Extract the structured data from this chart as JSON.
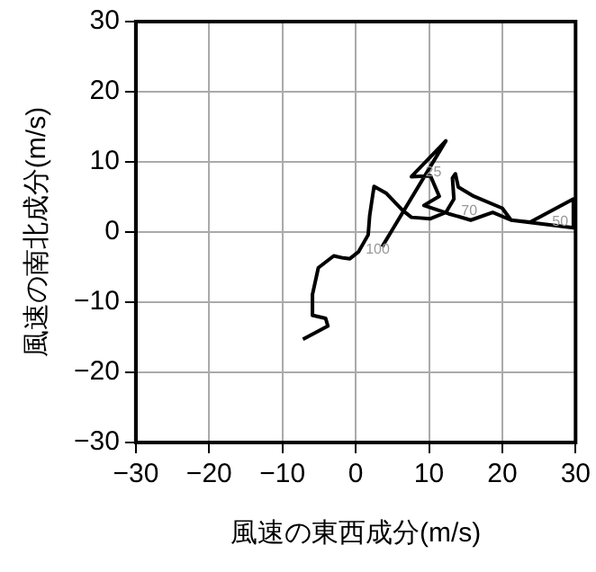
{
  "chart_data": {
    "type": "line",
    "xlabel": "風速の東西成分(m/s)",
    "ylabel": "風速の南北成分(m/s)",
    "xlim": [
      -30,
      30
    ],
    "ylim": [
      -30,
      30
    ],
    "xticks": [
      {
        "value": -30,
        "label": "−30"
      },
      {
        "value": -20,
        "label": "−20"
      },
      {
        "value": -10,
        "label": "−10"
      },
      0,
      10,
      20,
      30
    ],
    "yticks": [
      {
        "value": -30,
        "label": "−30"
      },
      {
        "value": -20,
        "label": "−20"
      },
      {
        "value": -10,
        "label": "−10"
      },
      0,
      10,
      20,
      30
    ],
    "grid": true,
    "legend": false,
    "marker": "none",
    "line_style": "solid",
    "annotations": [
      {
        "text": "100",
        "x": 3,
        "y": -2.5
      },
      {
        "text": "25",
        "x": 10.6,
        "y": 8.5
      },
      {
        "text": "70",
        "x": 15.5,
        "y": 3
      },
      {
        "text": "50",
        "x": 27.9,
        "y": 1.4
      }
    ],
    "series": [
      {
        "color": "#000000",
        "x": [
          -7.2,
          -3.8,
          -4.1,
          -5.8,
          -5.9,
          -5.1,
          -3.0,
          -1.7,
          -0.8,
          0.4,
          1.7,
          1.9,
          2.5,
          4.2,
          6.4,
          7.6,
          10.2,
          12.3,
          13.4,
          13.2,
          13.6,
          14.0,
          16.1,
          20.0,
          21.2,
          29.7,
          29.7,
          23.8,
          21.2,
          18.7,
          15.7,
          12.7,
          9.3,
          11.4,
          10.2,
          7.6,
          12.3,
          3.6
        ],
        "values": [
          -15.3,
          -13.4,
          -12.3,
          -11.9,
          -8.9,
          -5.1,
          -3.4,
          -3.7,
          -3.8,
          -2.8,
          -0.4,
          2.3,
          6.5,
          5.5,
          3.1,
          2.1,
          1.9,
          2.8,
          4.7,
          7.7,
          8.3,
          6.4,
          5.1,
          3.4,
          1.7,
          0.6,
          4.7,
          1.4,
          1.7,
          2.8,
          1.7,
          2.6,
          3.8,
          5.1,
          8.0,
          7.9,
          13.0,
          -2.1
        ]
      }
    ]
  }
}
